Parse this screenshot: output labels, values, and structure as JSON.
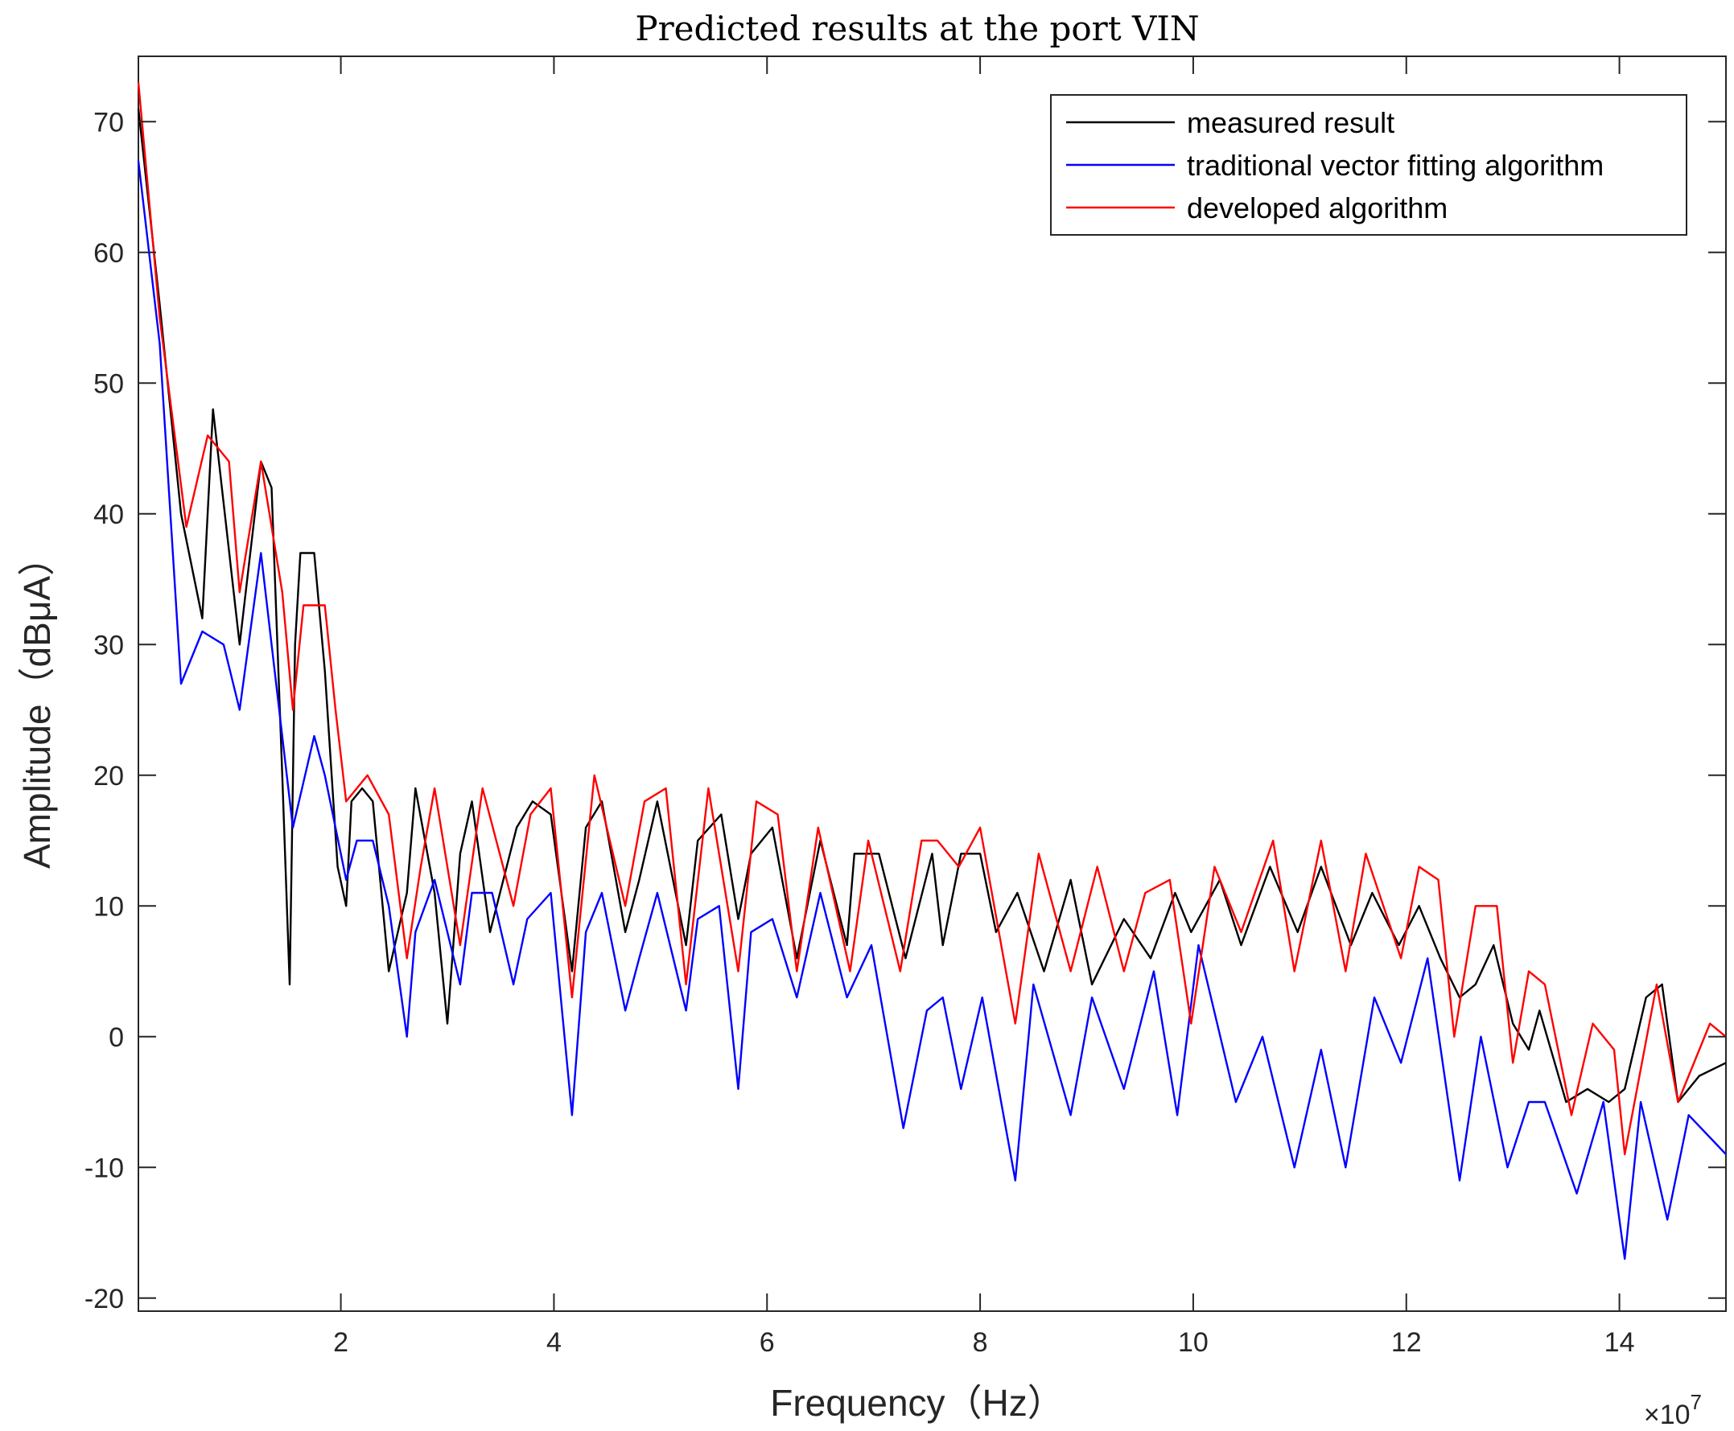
{
  "chart_data": {
    "type": "line",
    "title": "Predicted results at the port VIN",
    "xlabel": "Frequency（Hz）",
    "ylabel": "Amplitude（dBμA）",
    "x_multiplier": "×10",
    "x_multiplier_exponent": "7",
    "xlim": [
      0.1,
      15
    ],
    "ylim": [
      -21,
      75
    ],
    "xticks": [
      2,
      4,
      6,
      8,
      10,
      12,
      14
    ],
    "yticks": [
      -20,
      -10,
      0,
      10,
      20,
      30,
      40,
      50,
      60,
      70
    ],
    "grid": false,
    "legend_position": "top-right",
    "series": [
      {
        "name": "measured result",
        "color": "#000000",
        "x": [
          0.1,
          0.3,
          0.5,
          0.7,
          0.8,
          1.05,
          1.25,
          1.35,
          1.45,
          1.52,
          1.57,
          1.62,
          1.75,
          1.85,
          1.97,
          2.05,
          2.1,
          2.2,
          2.3,
          2.45,
          2.62,
          2.7,
          2.88,
          3.0,
          3.12,
          3.23,
          3.4,
          3.65,
          3.8,
          3.97,
          4.17,
          4.3,
          4.45,
          4.67,
          4.8,
          4.97,
          5.24,
          5.35,
          5.57,
          5.73,
          5.85,
          6.05,
          6.28,
          6.5,
          6.75,
          6.82,
          7.05,
          7.3,
          7.55,
          7.65,
          7.82,
          8.0,
          8.15,
          8.35,
          8.6,
          8.85,
          9.05,
          9.35,
          9.6,
          9.83,
          9.98,
          10.25,
          10.45,
          10.72,
          10.98,
          11.2,
          11.48,
          11.68,
          11.93,
          12.12,
          12.32,
          12.5,
          12.65,
          12.82,
          13.0,
          13.15,
          13.25,
          13.5,
          13.7,
          13.9,
          14.05,
          14.25,
          14.4,
          14.55,
          14.75,
          15.0
        ],
        "values": [
          71,
          56,
          40,
          32,
          48,
          30,
          44,
          42,
          20,
          4,
          30,
          37,
          37,
          28,
          13,
          10,
          18,
          19,
          18,
          5,
          11,
          19,
          11,
          1,
          14,
          18,
          8,
          16,
          18,
          17,
          5,
          16,
          18,
          8,
          12,
          18,
          7,
          15,
          17,
          9,
          14,
          16,
          6,
          15,
          7,
          14,
          14,
          6,
          14,
          7,
          14,
          14,
          8,
          11,
          5,
          12,
          4,
          9,
          6,
          11,
          8,
          12,
          7,
          13,
          8,
          13,
          7,
          11,
          7,
          10,
          6,
          3,
          4,
          7,
          1,
          -1,
          2,
          -5,
          -4,
          -5,
          -4,
          3,
          4,
          -5,
          -3,
          -2
        ]
      },
      {
        "name": "traditional vector fitting algorithm",
        "color": "#0000ff",
        "x": [
          0.1,
          0.3,
          0.5,
          0.7,
          0.9,
          1.05,
          1.25,
          1.55,
          1.75,
          1.85,
          2.05,
          2.15,
          2.3,
          2.45,
          2.62,
          2.7,
          2.88,
          3.12,
          3.23,
          3.42,
          3.62,
          3.75,
          3.97,
          4.17,
          4.3,
          4.45,
          4.67,
          4.8,
          4.97,
          5.24,
          5.35,
          5.55,
          5.73,
          5.85,
          6.05,
          6.28,
          6.5,
          6.75,
          6.98,
          7.28,
          7.5,
          7.65,
          7.82,
          8.02,
          8.33,
          8.5,
          8.85,
          9.05,
          9.35,
          9.63,
          9.85,
          10.05,
          10.4,
          10.65,
          10.95,
          11.2,
          11.43,
          11.7,
          11.95,
          12.2,
          12.5,
          12.7,
          12.95,
          13.15,
          13.3,
          13.6,
          13.85,
          14.05,
          14.2,
          14.45,
          14.65,
          15.0
        ],
        "values": [
          67,
          53,
          27,
          31,
          30,
          25,
          37,
          16,
          23,
          20,
          12,
          15,
          15,
          10,
          0,
          8,
          12,
          4,
          11,
          11,
          4,
          9,
          11,
          -6,
          8,
          11,
          2,
          6,
          11,
          2,
          9,
          10,
          -4,
          8,
          9,
          3,
          11,
          3,
          7,
          -7,
          2,
          3,
          -4,
          3,
          -11,
          4,
          -6,
          3,
          -4,
          5,
          -6,
          7,
          -5,
          0,
          -10,
          -1,
          -10,
          3,
          -2,
          6,
          -11,
          0,
          -10,
          -5,
          -5,
          -12,
          -5,
          -17,
          -5,
          -14,
          -6,
          -9
        ]
      },
      {
        "name": "developed algorithm",
        "color": "#ff0000",
        "x": [
          0.1,
          0.3,
          0.55,
          0.75,
          0.95,
          1.05,
          1.25,
          1.45,
          1.55,
          1.65,
          1.85,
          1.95,
          2.05,
          2.15,
          2.25,
          2.45,
          2.62,
          2.75,
          2.88,
          3.12,
          3.33,
          3.62,
          3.78,
          3.97,
          4.17,
          4.38,
          4.67,
          4.85,
          5.05,
          5.24,
          5.45,
          5.73,
          5.9,
          6.1,
          6.28,
          6.48,
          6.78,
          6.95,
          7.25,
          7.45,
          7.6,
          7.8,
          8.0,
          8.33,
          8.55,
          8.85,
          9.1,
          9.35,
          9.55,
          9.78,
          9.98,
          10.2,
          10.45,
          10.75,
          10.95,
          11.2,
          11.43,
          11.62,
          11.95,
          12.12,
          12.3,
          12.45,
          12.65,
          12.85,
          13.0,
          13.15,
          13.3,
          13.55,
          13.75,
          13.95,
          14.05,
          14.35,
          14.55,
          14.85,
          15.0
        ],
        "values": [
          73,
          55,
          39,
          46,
          44,
          34,
          44,
          34,
          25,
          33,
          33,
          25,
          18,
          19,
          20,
          17,
          6,
          13,
          19,
          7,
          19,
          10,
          17,
          19,
          3,
          20,
          10,
          18,
          19,
          4,
          19,
          5,
          18,
          17,
          5,
          16,
          5,
          15,
          5,
          15,
          15,
          13,
          16,
          1,
          14,
          5,
          13,
          5,
          11,
          12,
          1,
          13,
          8,
          15,
          5,
          15,
          5,
          14,
          6,
          13,
          12,
          0,
          10,
          10,
          -2,
          5,
          4,
          -6,
          1,
          -1,
          -9,
          4,
          -5,
          1,
          0
        ]
      }
    ]
  }
}
